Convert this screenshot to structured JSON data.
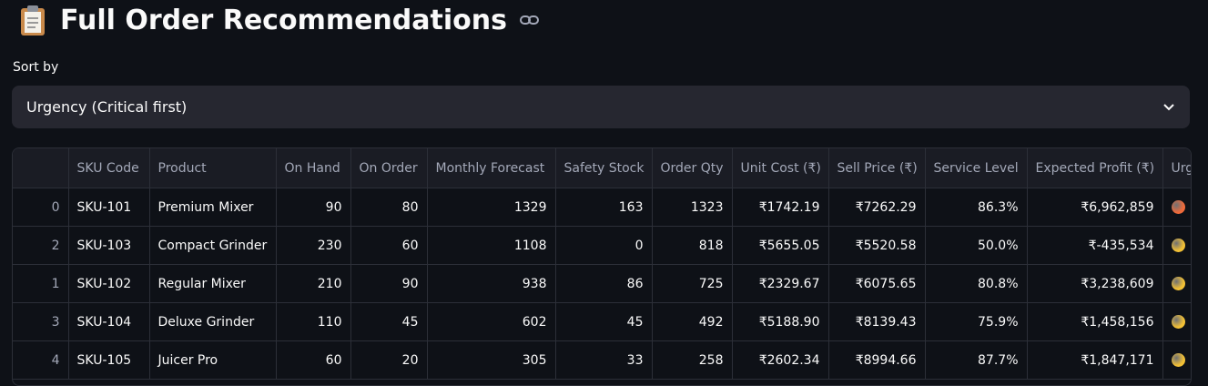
{
  "header": {
    "title": "Full Order Recommendations"
  },
  "sort": {
    "label": "Sort by",
    "selected": "Urgency (Critical first)"
  },
  "table": {
    "columns": [
      "SKU Code",
      "Product",
      "On Hand",
      "On Order",
      "Monthly Forecast",
      "Safety Stock",
      "Order Qty",
      "Unit Cost (₹)",
      "Sell Price (₹)",
      "Service Level",
      "Expected Profit (₹)",
      "Urgency"
    ],
    "rows": [
      [
        "0",
        "SKU-101",
        "Premium Mixer",
        "90",
        "80",
        "1329",
        "163",
        "1323",
        "₹1742.19",
        "₹7262.29",
        "86.3%",
        "₹6,962,859"
      ],
      [
        "2",
        "SKU-103",
        "Compact Grinder",
        "230",
        "60",
        "1108",
        "0",
        "818",
        "₹5655.05",
        "₹5520.58",
        "50.0%",
        "₹-435,534"
      ],
      [
        "1",
        "SKU-102",
        "Regular Mixer",
        "210",
        "90",
        "938",
        "86",
        "725",
        "₹2329.67",
        "₹6075.65",
        "80.8%",
        "₹3,238,609"
      ],
      [
        "3",
        "SKU-104",
        "Deluxe Grinder",
        "110",
        "45",
        "602",
        "45",
        "492",
        "₹5188.90",
        "₹8139.43",
        "75.9%",
        "₹1,458,156"
      ],
      [
        "4",
        "SKU-105",
        "Juicer Pro",
        "60",
        "20",
        "305",
        "33",
        "258",
        "₹2602.34",
        "₹8994.66",
        "87.7%",
        "₹1,847,171"
      ]
    ],
    "urgency_colors": [
      "#ef6a3a",
      "#f2c035",
      "#f2c035",
      "#f2c035",
      "#f2c035"
    ]
  }
}
